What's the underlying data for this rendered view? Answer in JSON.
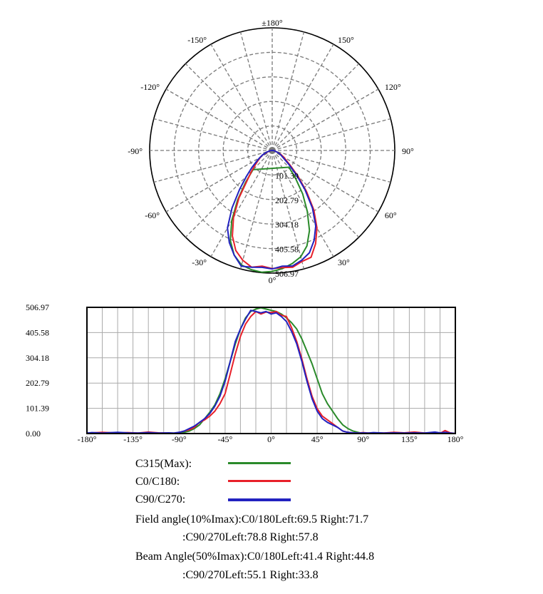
{
  "colors": {
    "C315": "#2a8a2a",
    "C0_C180": "#e8202a",
    "C90_C270": "#2222c0",
    "grid": "#7a7a7a"
  },
  "chart_data": [
    {
      "type": "polar",
      "angle_labels": [
        {
          "deg": 180,
          "label": "±180°"
        },
        {
          "deg": -150,
          "label": "-150°"
        },
        {
          "deg": 150,
          "label": "150°"
        },
        {
          "deg": -120,
          "label": "-120°"
        },
        {
          "deg": 120,
          "label": "120°"
        },
        {
          "deg": -90,
          "label": "-90°"
        },
        {
          "deg": 90,
          "label": "90°"
        },
        {
          "deg": -60,
          "label": "-60°"
        },
        {
          "deg": 60,
          "label": "60°"
        },
        {
          "deg": -30,
          "label": "-30°"
        },
        {
          "deg": 30,
          "label": "30°"
        },
        {
          "deg": 0,
          "label": "0°"
        }
      ],
      "radial_ticks": [
        101.39,
        202.79,
        304.18,
        405.58,
        506.97
      ],
      "radial_tick_labels": [
        "101.39",
        "202.79",
        "304.18",
        "405.58",
        "506.97"
      ],
      "rmax": 506.97,
      "series": [
        {
          "name": "C315(Max)",
          "angles": [
            -45,
            -40,
            -35,
            -30,
            -25,
            -20,
            -15,
            -10,
            -5,
            0,
            5,
            10,
            15,
            20,
            25,
            30,
            35,
            40,
            45
          ],
          "values": [
            112,
            170,
            250,
            335,
            410,
            460,
            490,
            500,
            505,
            500,
            490,
            475,
            455,
            420,
            365,
            290,
            220,
            150,
            98
          ]
        },
        {
          "name": "C0/C180",
          "angles": [
            -90,
            -80,
            -75,
            -70,
            -65,
            -60,
            -55,
            -50,
            -45,
            -40,
            -35,
            -30,
            -25,
            -20,
            -15,
            -10,
            -5,
            0,
            5,
            10,
            15,
            20,
            25,
            30,
            35,
            40,
            45,
            50,
            55,
            60,
            65,
            70,
            80,
            90
          ],
          "values": [
            5,
            10,
            15,
            25,
            45,
            55,
            70,
            90,
            120,
            160,
            240,
            320,
            390,
            440,
            470,
            490,
            480,
            488,
            486,
            490,
            475,
            470,
            425,
            370,
            300,
            220,
            150,
            100,
            70,
            55,
            40,
            25,
            10,
            5
          ]
        },
        {
          "name": "C90/C270",
          "angles": [
            -90,
            -80,
            -75,
            -70,
            -65,
            -60,
            -55,
            -50,
            -45,
            -40,
            -35,
            -30,
            -25,
            -20,
            -15,
            -10,
            -5,
            0,
            5,
            10,
            15,
            20,
            25,
            30,
            35,
            40,
            45,
            50,
            55,
            60,
            65,
            70,
            80,
            90
          ],
          "values": [
            5,
            10,
            20,
            30,
            45,
            60,
            80,
            110,
            150,
            210,
            290,
            370,
            420,
            460,
            495,
            490,
            485,
            490,
            480,
            485,
            470,
            450,
            410,
            360,
            290,
            210,
            140,
            90,
            60,
            45,
            35,
            25,
            10,
            5
          ]
        }
      ]
    },
    {
      "type": "line",
      "x_ticks": [
        -180,
        -135,
        -90,
        -45,
        0,
        45,
        90,
        135,
        180
      ],
      "x_tick_labels": [
        "-180°",
        "-135°",
        "-90°",
        "-45°",
        "0°",
        "45°",
        "90°",
        "135°",
        "180°"
      ],
      "y_ticks": [
        0,
        101.39,
        202.79,
        304.18,
        405.58,
        506.97
      ],
      "y_tick_labels": [
        "0.00",
        "101.39",
        "202.79",
        "304.18",
        "405.58",
        "506.97"
      ],
      "xlim": [
        -180,
        180
      ],
      "ylim": [
        0,
        506.97
      ],
      "series": [
        {
          "name": "C315(Max)",
          "x": [
            -92,
            -85,
            -80,
            -75,
            -70,
            -65,
            -60,
            -55,
            -50,
            -45,
            -40,
            -35,
            -30,
            -25,
            -20,
            -15,
            -10,
            -5,
            0,
            5,
            10,
            15,
            20,
            25,
            30,
            35,
            40,
            45,
            50,
            55,
            60,
            65,
            70,
            75,
            80,
            85,
            90
          ],
          "y": [
            0,
            5,
            10,
            20,
            35,
            60,
            85,
            115,
            160,
            220,
            290,
            360,
            420,
            465,
            490,
            500,
            505,
            500,
            495,
            490,
            480,
            465,
            445,
            420,
            380,
            330,
            280,
            220,
            160,
            120,
            90,
            60,
            35,
            20,
            10,
            5,
            0
          ]
        },
        {
          "name": "C0/C180",
          "x": [
            -180,
            -175,
            -165,
            -150,
            -140,
            -130,
            -120,
            -110,
            -100,
            -95,
            -90,
            -85,
            -80,
            -75,
            -70,
            -65,
            -60,
            -55,
            -50,
            -45,
            -40,
            -35,
            -30,
            -25,
            -20,
            -15,
            -10,
            -5,
            0,
            5,
            10,
            15,
            20,
            25,
            30,
            35,
            40,
            45,
            50,
            55,
            60,
            65,
            70,
            75,
            80,
            85,
            90,
            95,
            100,
            110,
            120,
            130,
            140,
            150,
            160,
            165,
            170,
            175,
            180
          ],
          "y": [
            0,
            3,
            5,
            2,
            4,
            2,
            6,
            3,
            2,
            1,
            5,
            10,
            15,
            25,
            45,
            55,
            70,
            90,
            120,
            160,
            240,
            320,
            390,
            440,
            470,
            490,
            480,
            488,
            486,
            490,
            475,
            470,
            425,
            370,
            300,
            220,
            150,
            100,
            70,
            55,
            40,
            25,
            10,
            5,
            3,
            2,
            4,
            2,
            3,
            2,
            5,
            3,
            6,
            2,
            4,
            1,
            12,
            3,
            0
          ]
        },
        {
          "name": "C90/C270",
          "x": [
            -180,
            -175,
            -165,
            -150,
            -140,
            -130,
            -120,
            -110,
            -100,
            -95,
            -90,
            -85,
            -80,
            -75,
            -70,
            -65,
            -60,
            -55,
            -50,
            -45,
            -40,
            -35,
            -30,
            -25,
            -20,
            -15,
            -10,
            -5,
            0,
            5,
            10,
            15,
            20,
            25,
            30,
            35,
            40,
            45,
            50,
            55,
            60,
            65,
            70,
            75,
            80,
            85,
            90,
            95,
            100,
            110,
            120,
            130,
            140,
            150,
            160,
            165,
            170,
            175,
            180
          ],
          "y": [
            2,
            4,
            2,
            5,
            3,
            2,
            4,
            2,
            3,
            2,
            5,
            10,
            20,
            30,
            45,
            60,
            80,
            110,
            150,
            210,
            290,
            370,
            420,
            460,
            495,
            490,
            485,
            490,
            480,
            485,
            470,
            450,
            410,
            360,
            290,
            210,
            140,
            90,
            60,
            45,
            35,
            25,
            10,
            5,
            3,
            2,
            3,
            2,
            4,
            2,
            3,
            2,
            3,
            2,
            6,
            3,
            5,
            2,
            1
          ]
        }
      ]
    }
  ],
  "legend": {
    "items": [
      {
        "label": "C315(Max):"
      },
      {
        "label": "C0/C180:"
      },
      {
        "label": "C90/C270:"
      }
    ]
  },
  "info": {
    "field_line1": "Field angle(10%Imax):C0/180Left:69.5 Right:71.7",
    "field_line2": ":C90/270Left:78.8 Right:57.8",
    "beam_line1": "Beam Angle(50%Imax):C0/180Left:41.4 Right:44.8",
    "beam_line2": ":C90/270Left:55.1 Right:33.8"
  }
}
